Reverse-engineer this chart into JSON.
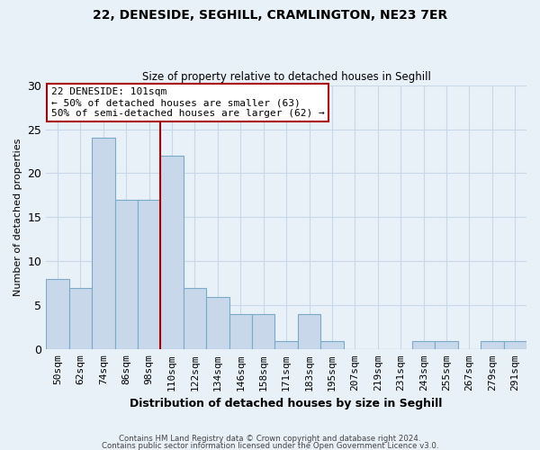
{
  "title1": "22, DENESIDE, SEGHILL, CRAMLINGTON, NE23 7ER",
  "title2": "Size of property relative to detached houses in Seghill",
  "xlabel": "Distribution of detached houses by size in Seghill",
  "ylabel": "Number of detached properties",
  "bin_labels": [
    "50sqm",
    "62sqm",
    "74sqm",
    "86sqm",
    "98sqm",
    "110sqm",
    "122sqm",
    "134sqm",
    "146sqm",
    "158sqm",
    "171sqm",
    "183sqm",
    "195sqm",
    "207sqm",
    "219sqm",
    "231sqm",
    "243sqm",
    "255sqm",
    "267sqm",
    "279sqm",
    "291sqm"
  ],
  "bar_heights": [
    8,
    7,
    24,
    17,
    17,
    22,
    7,
    6,
    4,
    4,
    1,
    4,
    1,
    0,
    0,
    0,
    1,
    1,
    0,
    1,
    1
  ],
  "bar_color": "#c8d8ea",
  "bar_edge_color": "#7aaac8",
  "ylim": [
    0,
    30
  ],
  "yticks": [
    0,
    5,
    10,
    15,
    20,
    25,
    30
  ],
  "annotation_title": "22 DENESIDE: 101sqm",
  "annotation_line1": "← 50% of detached houses are smaller (63)",
  "annotation_line2": "50% of semi-detached houses are larger (62) →",
  "vline_color": "#aa0000",
  "vline_bin_index": 5,
  "footer1": "Contains HM Land Registry data © Crown copyright and database right 2024.",
  "footer2": "Contains public sector information licensed under the Open Government Licence v3.0.",
  "annotation_box_color": "#ffffff",
  "annotation_box_edge": "#aa0000",
  "grid_color": "#c8d8e8",
  "background_color": "#e8f0f8",
  "title1_fontsize": 10,
  "title2_fontsize": 8.5,
  "ylabel_fontsize": 8,
  "xlabel_fontsize": 9
}
